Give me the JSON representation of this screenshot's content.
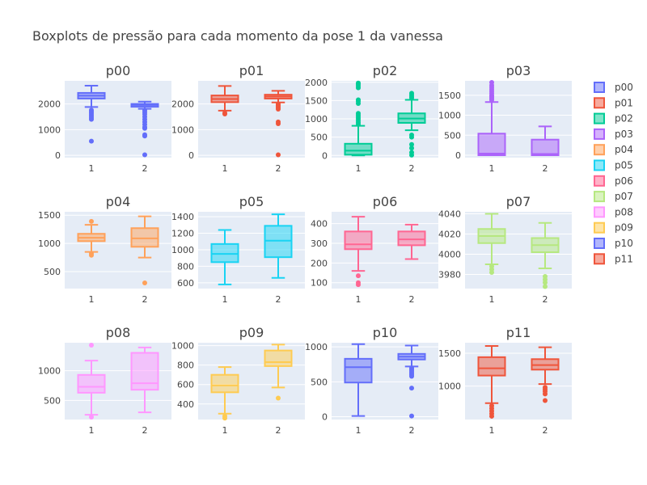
{
  "title": "Boxplots de pressão para cada momento da pose 1 da vanessa",
  "chart_data": {
    "type": "box",
    "layout": {
      "rows": 3,
      "cols": 4,
      "background": "#e5ecf6"
    },
    "panels": [
      {
        "name": "p00",
        "color": "#636efa",
        "yticks": [
          0,
          1000,
          2000
        ],
        "yticklabels": [
          "0",
          "1000",
          "2000"
        ],
        "ylim": [
          -90,
          2900
        ],
        "boxes": [
          {
            "x": "1",
            "q1": 2210,
            "median": 2320,
            "q3": 2430,
            "lowerfence": 1880,
            "upperfence": 2710,
            "outliers": [
              1760,
              1700,
              1640,
              1580,
              1520,
              1460,
              1400,
              550
            ]
          },
          {
            "x": "2",
            "q1": 1890,
            "median": 1960,
            "q3": 2000,
            "lowerfence": 1810,
            "upperfence": 2090,
            "outliers": [
              1750,
              1680,
              1600,
              1500,
              1400,
              1300,
              1200,
              1100,
              1050,
              800,
              750,
              20
            ]
          }
        ]
      },
      {
        "name": "p01",
        "color": "#ef553b",
        "yticks": [
          0,
          1000,
          2000
        ],
        "yticklabels": [
          "0",
          "1000",
          "2000"
        ],
        "ylim": [
          -90,
          2900
        ],
        "boxes": [
          {
            "x": "1",
            "q1": 2070,
            "median": 2190,
            "q3": 2330,
            "lowerfence": 1740,
            "upperfence": 2700,
            "outliers": [
              1650,
              1610
            ]
          },
          {
            "x": "2",
            "q1": 2210,
            "median": 2290,
            "q3": 2360,
            "lowerfence": 2060,
            "upperfence": 2510,
            "outliers": [
              2000,
              1950,
              1900,
              1850,
              1800,
              1300,
              1230,
              20
            ]
          }
        ]
      },
      {
        "name": "p02",
        "color": "#00cc96",
        "yticks": [
          0,
          500,
          1000,
          1500,
          2000
        ],
        "yticklabels": [
          "0",
          "500",
          "1000",
          "1500",
          "2000"
        ],
        "ylim": [
          -60,
          2040
        ],
        "boxes": [
          {
            "x": "1",
            "q1": 20,
            "median": 130,
            "q3": 320,
            "lowerfence": 0,
            "upperfence": 810,
            "outliers": [
              1980,
              1950,
              1900,
              1850,
              1520,
              1480,
              1420,
              1150,
              1100,
              1050,
              1000,
              950,
              900,
              850
            ]
          },
          {
            "x": "2",
            "q1": 890,
            "median": 1010,
            "q3": 1150,
            "lowerfence": 690,
            "upperfence": 1520,
            "outliers": [
              1700,
              1650,
              1600,
              1570,
              560,
              500,
              300,
              200,
              80,
              10
            ]
          }
        ]
      },
      {
        "name": "p03",
        "color": "#ab63fa",
        "yticks": [
          0,
          500,
          1000,
          1500
        ],
        "yticklabels": [
          "0",
          "500",
          "1000",
          "1500"
        ],
        "ylim": [
          -60,
          1860
        ],
        "boxes": [
          {
            "x": "1",
            "q1": 0,
            "median": 40,
            "q3": 540,
            "lowerfence": 0,
            "upperfence": 1330,
            "outliers": [
              1820,
              1750,
              1700,
              1650,
              1600,
              1550,
              1500,
              1470,
              1440,
              1410,
              1380
            ]
          },
          {
            "x": "2",
            "q1": 0,
            "median": 30,
            "q3": 390,
            "lowerfence": 0,
            "upperfence": 720,
            "outliers": []
          }
        ]
      },
      {
        "name": "p04",
        "color": "#ffa15a",
        "yticks": [
          500,
          1000,
          1500
        ],
        "yticklabels": [
          "500",
          "1000",
          "1500"
        ],
        "ylim": [
          200,
          1560
        ],
        "boxes": [
          {
            "x": "1",
            "q1": 1040,
            "median": 1100,
            "q3": 1170,
            "lowerfence": 850,
            "upperfence": 1330,
            "outliers": [
              1390,
              820,
              790
            ]
          },
          {
            "x": "2",
            "q1": 940,
            "median": 1090,
            "q3": 1270,
            "lowerfence": 750,
            "upperfence": 1480,
            "outliers": [
              300
            ]
          }
        ]
      },
      {
        "name": "p05",
        "color": "#19d3f3",
        "yticks": [
          600,
          800,
          1000,
          1200,
          1400
        ],
        "yticklabels": [
          "600",
          "800",
          "1000",
          "1200",
          "1400"
        ],
        "ylim": [
          530,
          1460
        ],
        "boxes": [
          {
            "x": "1",
            "q1": 850,
            "median": 950,
            "q3": 1070,
            "lowerfence": 580,
            "upperfence": 1240,
            "outliers": []
          },
          {
            "x": "2",
            "q1": 910,
            "median": 1110,
            "q3": 1290,
            "lowerfence": 660,
            "upperfence": 1430,
            "outliers": []
          }
        ]
      },
      {
        "name": "p06",
        "color": "#ff6692",
        "yticks": [
          100,
          200,
          300,
          400
        ],
        "yticklabels": [
          "100",
          "200",
          "300",
          "400"
        ],
        "ylim": [
          70,
          460
        ],
        "boxes": [
          {
            "x": "1",
            "q1": 270,
            "median": 295,
            "q3": 360,
            "lowerfence": 160,
            "upperfence": 435,
            "outliers": [
              135,
              100,
              90
            ]
          },
          {
            "x": "2",
            "q1": 290,
            "median": 320,
            "q3": 360,
            "lowerfence": 220,
            "upperfence": 395,
            "outliers": []
          }
        ]
      },
      {
        "name": "p07",
        "color": "#b6e880",
        "yticks": [
          3980,
          4000,
          4020,
          4040
        ],
        "yticklabels": [
          "3980",
          "4000",
          "4020",
          "4040"
        ],
        "ylim": [
          3966,
          4042
        ],
        "boxes": [
          {
            "x": "1",
            "q1": 4011,
            "median": 4018,
            "q3": 4025,
            "lowerfence": 3990,
            "upperfence": 4040,
            "outliers": [
              3988,
              3985,
              3982
            ]
          },
          {
            "x": "2",
            "q1": 4002,
            "median": 4009,
            "q3": 4016,
            "lowerfence": 3986,
            "upperfence": 4031,
            "outliers": [
              3978,
              3975,
              3972,
              3968
            ]
          }
        ]
      },
      {
        "name": "p08",
        "color": "#ff97ff",
        "yticks": [
          500,
          1000
        ],
        "yticklabels": [
          "500",
          "1000"
        ],
        "ylim": [
          180,
          1470
        ],
        "boxes": [
          {
            "x": "1",
            "q1": 630,
            "median": 730,
            "q3": 930,
            "lowerfence": 260,
            "upperfence": 1170,
            "outliers": [
              1430,
              220
            ]
          },
          {
            "x": "2",
            "q1": 680,
            "median": 790,
            "q3": 1300,
            "lowerfence": 300,
            "upperfence": 1390,
            "outliers": []
          }
        ]
      },
      {
        "name": "p09",
        "color": "#fecb52",
        "yticks": [
          400,
          600,
          800,
          1000
        ],
        "yticklabels": [
          "400",
          "600",
          "800",
          "1000"
        ],
        "ylim": [
          240,
          1030
        ],
        "boxes": [
          {
            "x": "1",
            "q1": 520,
            "median": 590,
            "q3": 700,
            "lowerfence": 300,
            "upperfence": 780,
            "outliers": [
              275,
              255
            ]
          },
          {
            "x": "2",
            "q1": 790,
            "median": 830,
            "q3": 950,
            "lowerfence": 570,
            "upperfence": 1010,
            "outliers": [
              460
            ]
          }
        ]
      },
      {
        "name": "p10",
        "color": "#636efa",
        "yticks": [
          0,
          500,
          1000
        ],
        "yticklabels": [
          "0",
          "500",
          "1000"
        ],
        "ylim": [
          -40,
          1060
        ],
        "boxes": [
          {
            "x": "1",
            "q1": 490,
            "median": 710,
            "q3": 830,
            "lowerfence": 10,
            "upperfence": 1040,
            "outliers": []
          },
          {
            "x": "2",
            "q1": 820,
            "median": 860,
            "q3": 900,
            "lowerfence": 720,
            "upperfence": 1020,
            "outliers": [
              700,
              680,
              660,
              640,
              620,
              600,
              580,
              410,
              10
            ]
          }
        ]
      },
      {
        "name": "p11",
        "color": "#ef553b",
        "yticks": [
          1000,
          1500
        ],
        "yticklabels": [
          "1000",
          "1500"
        ],
        "ylim": [
          490,
          1660
        ],
        "boxes": [
          {
            "x": "1",
            "q1": 1160,
            "median": 1270,
            "q3": 1440,
            "lowerfence": 740,
            "upperfence": 1610,
            "outliers": [
              700,
              660,
              620,
              580,
              540
            ]
          },
          {
            "x": "2",
            "q1": 1250,
            "median": 1320,
            "q3": 1410,
            "lowerfence": 1030,
            "upperfence": 1590,
            "outliers": [
              980,
              950,
              920,
              880,
              780
            ]
          }
        ]
      }
    ],
    "legend": {
      "position": "right"
    }
  }
}
